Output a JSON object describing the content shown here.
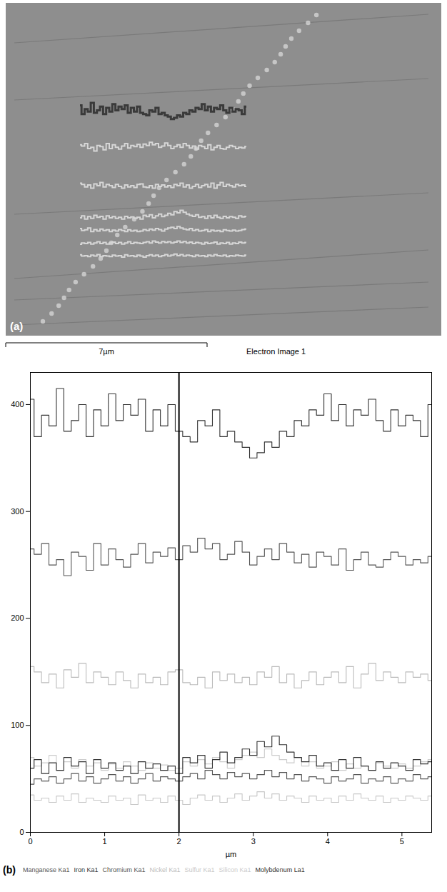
{
  "image": {
    "panel_label": "(a)",
    "scale_bar": "7µm",
    "caption": "Electron Image 1"
  },
  "chart_data": {
    "type": "line",
    "panel_label": "(b)",
    "x_label": "µm",
    "x": [
      0,
      0.1,
      0.2,
      0.3,
      0.4,
      0.5,
      0.6,
      0.7,
      0.8,
      0.9,
      1,
      1.1,
      1.2,
      1.3,
      1.4,
      1.5,
      1.6,
      1.7,
      1.8,
      1.9,
      2,
      2.1,
      2.2,
      2.3,
      2.4,
      2.5,
      2.6,
      2.7,
      2.8,
      2.9,
      3,
      3.1,
      3.2,
      3.3,
      3.4,
      3.5,
      3.6,
      3.7,
      3.8,
      3.9,
      4,
      4.1,
      4.2,
      4.3,
      4.4,
      4.5,
      4.6,
      4.7,
      4.8,
      4.9,
      5,
      5.1,
      5.2,
      5.3,
      5.4
    ],
    "xlim": [
      0,
      5.4
    ],
    "xticks": [
      0,
      1,
      2,
      3,
      4,
      5
    ],
    "ylim": [
      0,
      430
    ],
    "yticks": [
      0,
      100,
      200,
      300,
      400
    ],
    "vline": 2,
    "legend": "bottom",
    "series": [
      {
        "name": "Manganese Ka1",
        "color": "#555555",
        "values": [
          45,
          50,
          48,
          52,
          46,
          50,
          55,
          48,
          52,
          46,
          50,
          54,
          48,
          52,
          46,
          50,
          55,
          48,
          52,
          50,
          48,
          52,
          55,
          50,
          58,
          54,
          50,
          56,
          52,
          55,
          50,
          54,
          58,
          52,
          56,
          50,
          54,
          48,
          52,
          50,
          46,
          52,
          48,
          50,
          54,
          46,
          50,
          48,
          52,
          46,
          50,
          48,
          54,
          50,
          52
        ]
      },
      {
        "name": "Iron Ka1",
        "color": "#333333",
        "values": [
          405,
          370,
          390,
          380,
          415,
          375,
          385,
          400,
          370,
          395,
          380,
          410,
          385,
          400,
          390,
          405,
          375,
          395,
          380,
          400,
          375,
          370,
          365,
          385,
          380,
          395,
          370,
          375,
          365,
          360,
          350,
          355,
          365,
          360,
          375,
          370,
          385,
          380,
          395,
          390,
          410,
          385,
          400,
          380,
          395,
          390,
          405,
          385,
          375,
          395,
          380,
          390,
          385,
          370,
          400
        ]
      },
      {
        "name": "Chromium Ka1",
        "color": "#555555",
        "values": [
          265,
          260,
          270,
          250,
          255,
          240,
          262,
          258,
          245,
          270,
          250,
          265,
          255,
          248,
          260,
          270,
          252,
          262,
          258,
          266,
          255,
          268,
          262,
          275,
          265,
          270,
          255,
          260,
          272,
          262,
          250,
          258,
          265,
          255,
          270,
          262,
          252,
          260,
          248,
          262,
          258,
          250,
          265,
          245,
          255,
          262,
          250,
          248,
          255,
          262,
          258,
          250,
          255,
          252,
          258
        ]
      },
      {
        "name": "Nickel Ka1",
        "color": "#bbbbbb",
        "values": [
          155,
          150,
          140,
          148,
          135,
          152,
          145,
          158,
          140,
          150,
          145,
          138,
          150,
          142,
          135,
          148,
          140,
          145,
          138,
          150,
          152,
          140,
          138,
          145,
          135,
          150,
          142,
          148,
          140,
          145,
          138,
          150,
          145,
          155,
          140,
          148,
          135,
          142,
          150,
          138,
          145,
          150,
          140,
          155,
          135,
          148,
          158,
          142,
          150,
          145,
          140,
          150,
          145,
          148,
          142
        ]
      },
      {
        "name": "Sulfur Ka1",
        "color": "#c8c8c8",
        "values": [
          35,
          30,
          32,
          28,
          34,
          30,
          36,
          28,
          32,
          30,
          28,
          34,
          30,
          32,
          26,
          35,
          30,
          32,
          28,
          34,
          30,
          26,
          32,
          35,
          30,
          34,
          28,
          32,
          36,
          30,
          34,
          38,
          32,
          36,
          30,
          34,
          32,
          28,
          34,
          30,
          32,
          28,
          34,
          30,
          36,
          32,
          30,
          34,
          28,
          32,
          30,
          34,
          32,
          30,
          34
        ]
      },
      {
        "name": "Silicon Ka1",
        "color": "#cccccc",
        "values": [
          70,
          62,
          65,
          72,
          58,
          66,
          60,
          68,
          62,
          65,
          58,
          64,
          60,
          66,
          62,
          58,
          65,
          60,
          63,
          58,
          60,
          66,
          62,
          68,
          64,
          70,
          66,
          60,
          68,
          72,
          75,
          70,
          78,
          72,
          68,
          65,
          70,
          62,
          66,
          60,
          62,
          66,
          58,
          64,
          60,
          62,
          58,
          65,
          62,
          60,
          64,
          60,
          62,
          66,
          68
        ]
      },
      {
        "name": "Molybdenum La1",
        "color": "#333333",
        "values": [
          60,
          68,
          55,
          65,
          58,
          70,
          62,
          66,
          55,
          68,
          60,
          65,
          58,
          62,
          55,
          66,
          60,
          64,
          58,
          62,
          55,
          70,
          65,
          72,
          60,
          68,
          75,
          65,
          70,
          78,
          72,
          85,
          80,
          90,
          82,
          75,
          70,
          66,
          72,
          62,
          65,
          58,
          68,
          60,
          70,
          62,
          58,
          66,
          60,
          65,
          62,
          58,
          68,
          64,
          66
        ]
      }
    ]
  }
}
